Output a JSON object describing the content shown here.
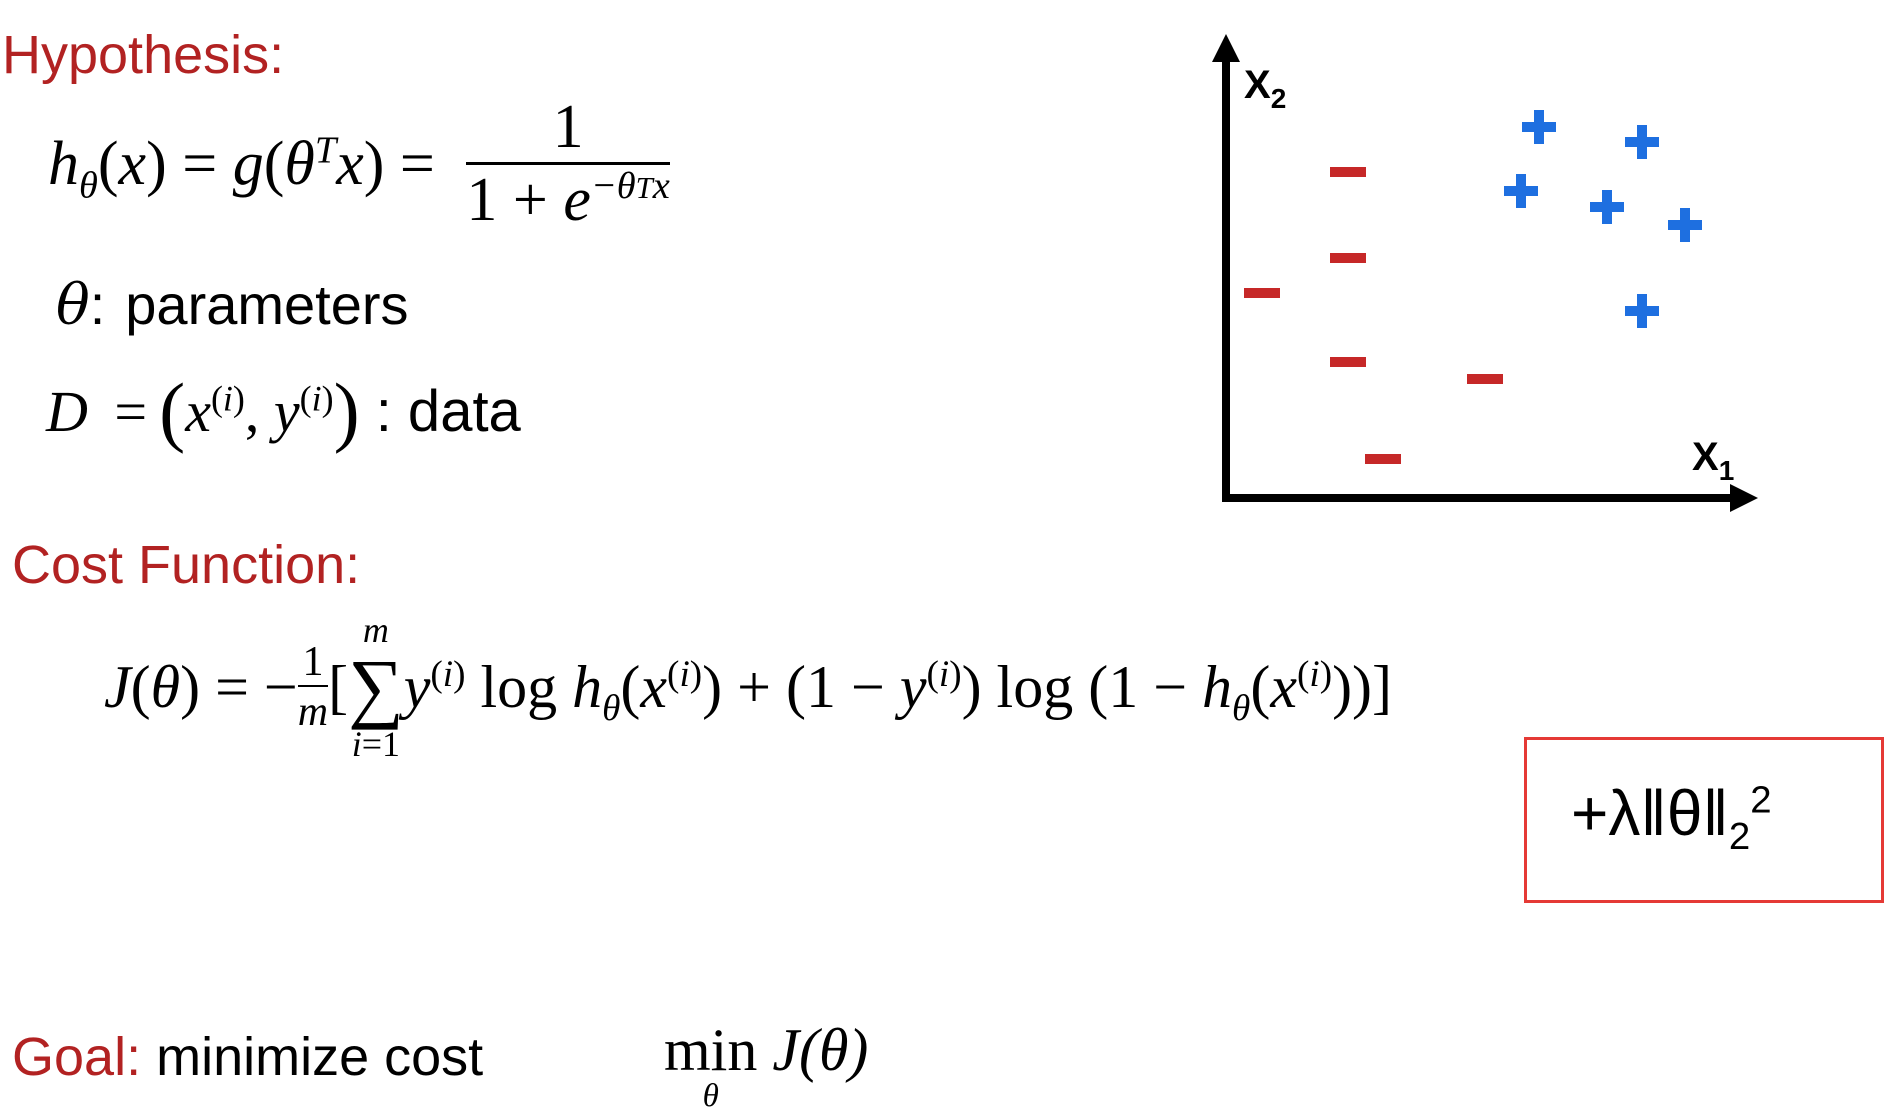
{
  "hypothesis": {
    "heading": "Hypothesis:"
  },
  "params": {
    "symbol": "θ",
    "colon": ":",
    "label": "parameters"
  },
  "data_def": {
    "lhs": "D",
    "eq": "=",
    "label": ": data"
  },
  "cost": {
    "heading": "Cost Function:",
    "regularizer": "+λ‖θ‖",
    "reg_sub": "2",
    "reg_sup": "2"
  },
  "goal": {
    "heading": "Goal:",
    "label": "minimize cost",
    "min": "min",
    "min_sub": "θ",
    "objective": "J(θ)"
  },
  "plot": {
    "x_axis_label": "X",
    "x_axis_sub": "1",
    "y_axis_label": "X",
    "y_axis_sub": "2",
    "negative_color": "#c62828",
    "positive_color": "#1e6fe0"
  }
}
